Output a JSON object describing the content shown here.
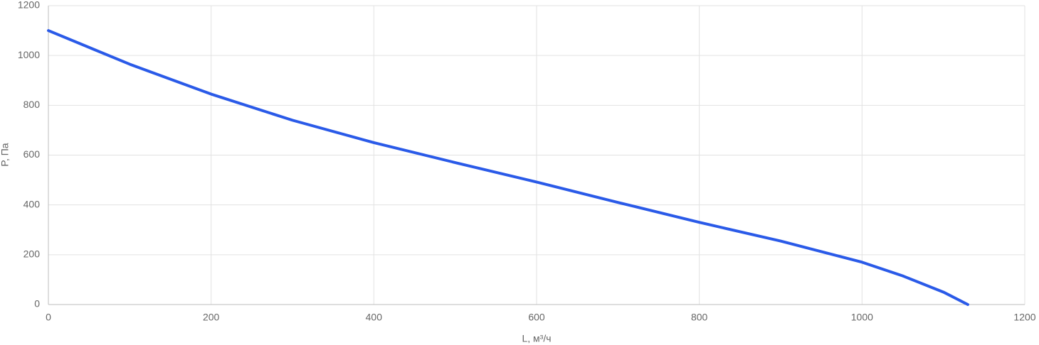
{
  "chart_data": {
    "type": "line",
    "x_label": "L, м³/ч",
    "y_label": "P, Па",
    "x": [
      0,
      100,
      200,
      300,
      400,
      500,
      600,
      700,
      800,
      900,
      1000,
      1050,
      1100,
      1130
    ],
    "series": [
      {
        "color": "#2a5ae8",
        "values": [
          1100,
          965,
          845,
          740,
          650,
          570,
          492,
          410,
          330,
          255,
          170,
          115,
          50,
          0
        ]
      }
    ],
    "xlim": [
      0,
      1200
    ],
    "xticks": [
      0,
      200,
      400,
      600,
      800,
      1000,
      1200
    ],
    "ylim": [
      0,
      1200
    ],
    "yticks": [
      0,
      200,
      400,
      600,
      800,
      1000,
      1200
    ],
    "grid": true
  }
}
